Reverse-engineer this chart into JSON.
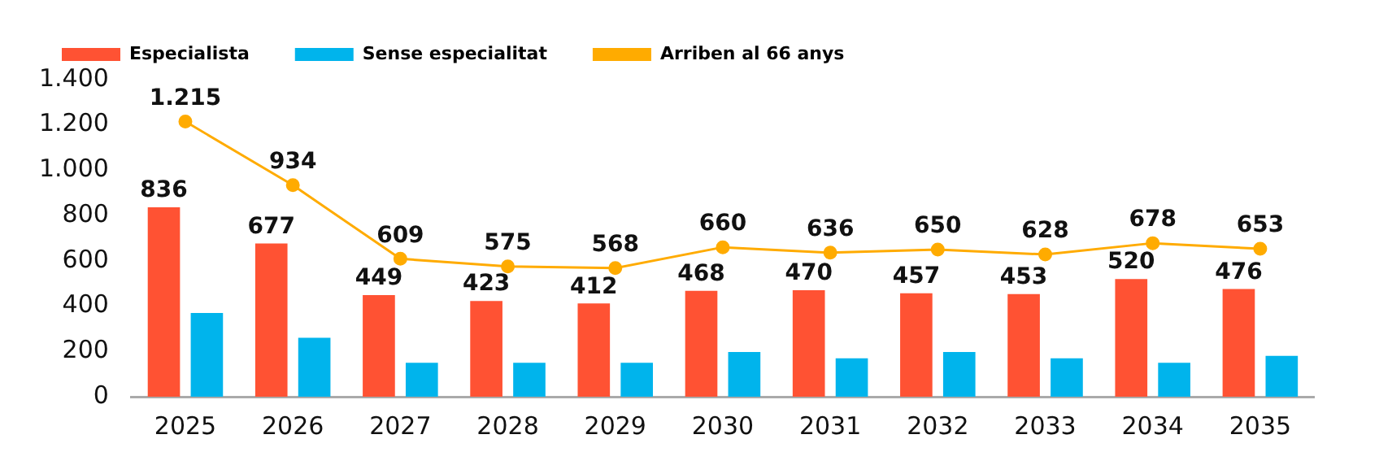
{
  "chart_data": {
    "type": "bar",
    "categories": [
      "2025",
      "2026",
      "2027",
      "2028",
      "2029",
      "2030",
      "2031",
      "2032",
      "2033",
      "2034",
      "2035"
    ],
    "series": [
      {
        "name": "Especialista",
        "color": "#ff5233",
        "values": [
          836,
          677,
          449,
          423,
          412,
          468,
          470,
          457,
          453,
          520,
          476
        ],
        "value_labels": [
          "836",
          "677",
          "449",
          "423",
          "412",
          "468",
          "470",
          "457",
          "453",
          "520",
          "476"
        ]
      },
      {
        "name": "Sense especialitat",
        "color": "#00b4ec",
        "values": [
          370,
          260,
          150,
          150,
          150,
          197,
          170,
          197,
          170,
          150,
          180
        ]
      },
      {
        "name": "Arriben al 66 anys",
        "type": "line",
        "color": "#ffab00",
        "values": [
          1215,
          934,
          609,
          575,
          568,
          660,
          636,
          650,
          628,
          678,
          653
        ],
        "value_labels": [
          "1.215",
          "934",
          "609",
          "575",
          "568",
          "660",
          "636",
          "650",
          "628",
          "678",
          "653"
        ]
      }
    ],
    "ylim": [
      0,
      1400
    ],
    "yticks": [
      0,
      200,
      400,
      600,
      {
        "value": 800,
        "label": "800"
      },
      {
        "value": 1000,
        "label": "1.000"
      },
      {
        "value": 1200,
        "label": "1.200"
      },
      {
        "value": 1400,
        "label": "1.400"
      }
    ],
    "grid": false,
    "legend": "top left",
    "marker": "circle",
    "line_style": "solid"
  }
}
